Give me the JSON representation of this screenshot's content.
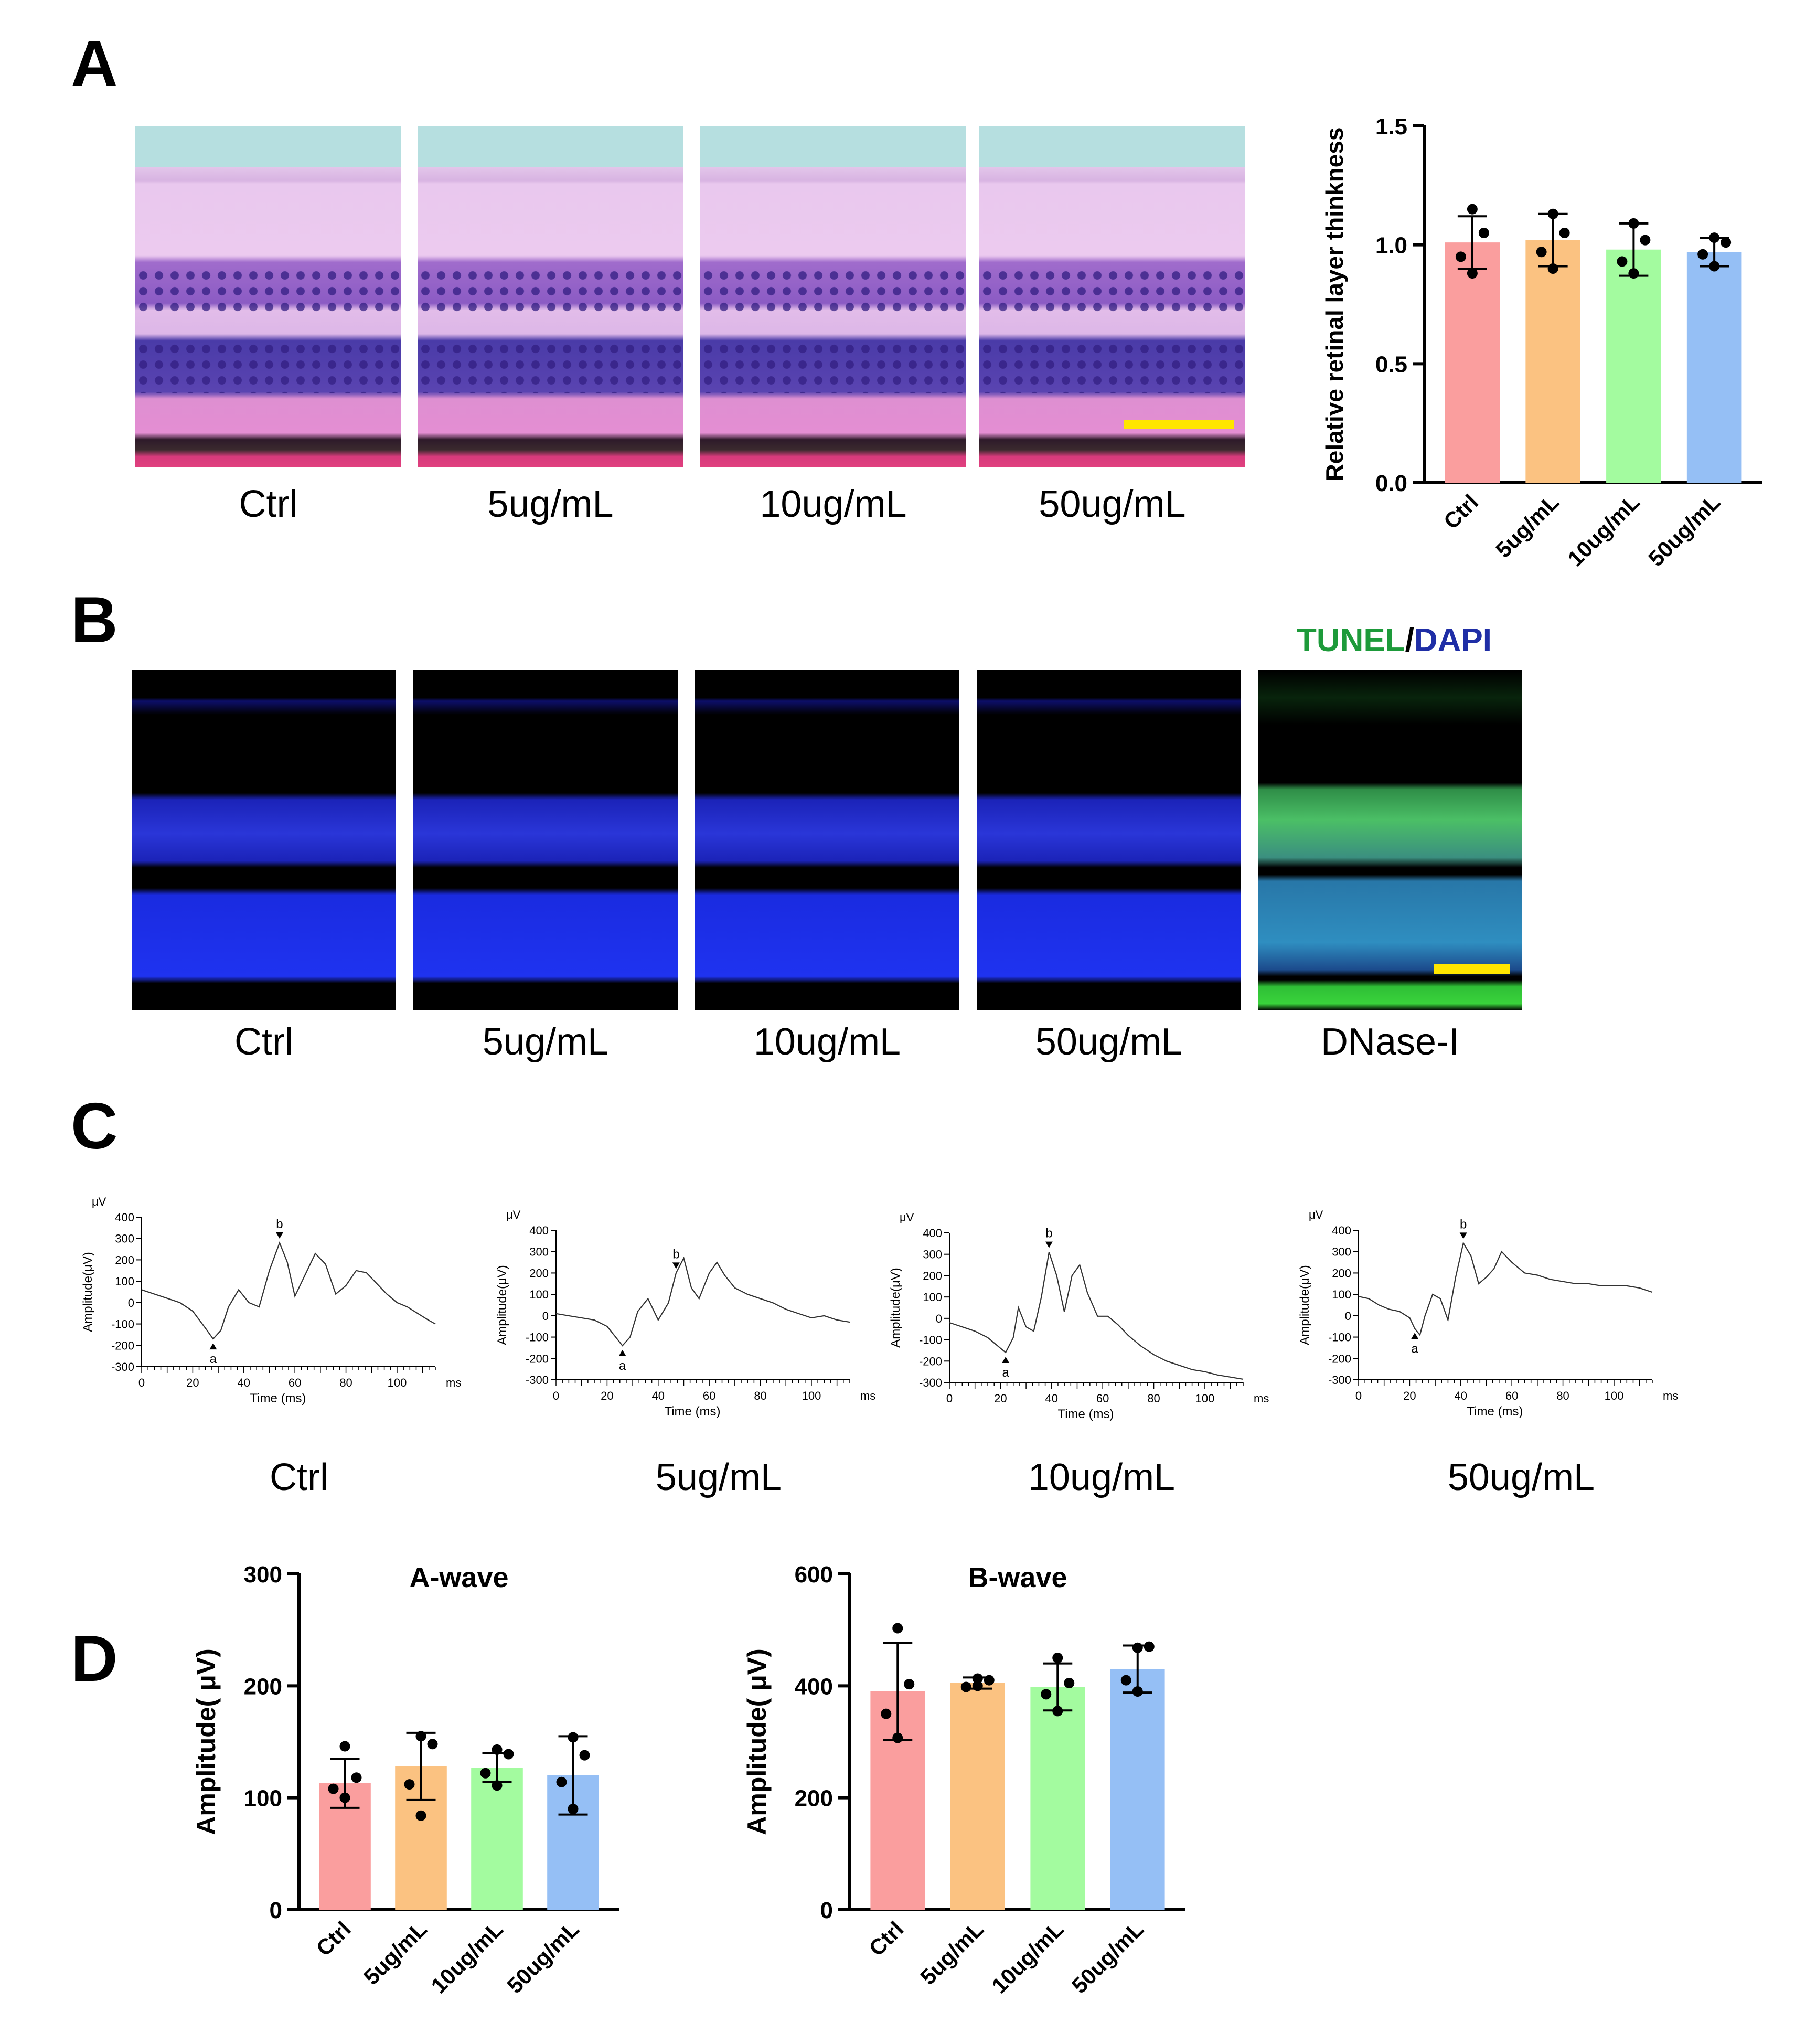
{
  "panels": {
    "a": "A",
    "b": "B",
    "c": "C",
    "d": "D"
  },
  "panel_a": {
    "image_labels": [
      "Ctrl",
      "5ug/mL",
      "10ug/mL",
      "50ug/mL"
    ]
  },
  "panel_b": {
    "image_labels": [
      "Ctrl",
      "5ug/mL",
      "10ug/mL",
      "50ug/mL",
      "DNase-I"
    ],
    "legend_green": "TUNEL",
    "legend_sep": "/",
    "legend_blue": "DAPI"
  },
  "panel_c": {
    "trace_labels": [
      "Ctrl",
      "5ug/mL",
      "10ug/mL",
      "50ug/mL"
    ],
    "unit_label": "μV",
    "ylabel": "Amplitude(μV)",
    "xlabel": "Time (ms)",
    "x_unit": "ms",
    "a_marker": "a",
    "b_marker": "b"
  },
  "colors": {
    "ctrl": "#fa9e9e",
    "c5": "#fbc281",
    "c10": "#a3fb9f",
    "c50": "#95bff5"
  },
  "chart_data": [
    {
      "id": "retinal-thickness",
      "type": "bar",
      "title": "",
      "xlabel": "",
      "ylabel": "Relative retinal layer thinkness",
      "categories": [
        "Ctrl",
        "5ug/mL",
        "10ug/mL",
        "50ug/mL"
      ],
      "values": [
        1.01,
        1.02,
        0.98,
        0.97
      ],
      "errors": [
        0.11,
        0.11,
        0.11,
        0.06
      ],
      "points": [
        [
          1.15,
          1.05,
          0.95,
          0.88
        ],
        [
          1.13,
          1.05,
          0.97,
          0.9
        ],
        [
          1.09,
          1.02,
          0.93,
          0.88
        ],
        [
          1.03,
          1.01,
          0.96,
          0.91
        ]
      ],
      "ylim": [
        0,
        1.5
      ],
      "yticks": [
        "0.0",
        "0.5",
        "1.0",
        "1.5"
      ]
    },
    {
      "id": "a-wave",
      "type": "bar",
      "title": "A-wave",
      "xlabel": "",
      "ylabel": "Amplitude( μV)",
      "categories": [
        "Ctrl",
        "5ug/mL",
        "10ug/mL",
        "50ug/mL"
      ],
      "values": [
        113,
        128,
        127,
        120
      ],
      "errors": [
        22,
        30,
        13,
        35
      ],
      "points": [
        [
          146,
          118,
          108,
          100
        ],
        [
          155,
          148,
          112,
          84
        ],
        [
          143,
          139,
          122,
          111
        ],
        [
          154,
          138,
          114,
          90
        ]
      ],
      "ylim": [
        0,
        300
      ],
      "yticks": [
        "0",
        "100",
        "200",
        "300"
      ]
    },
    {
      "id": "b-wave",
      "type": "bar",
      "title": "B-wave",
      "xlabel": "",
      "ylabel": "Amplitude( μV)",
      "categories": [
        "Ctrl",
        "5ug/mL",
        "10ug/mL",
        "50ug/mL"
      ],
      "values": [
        390,
        405,
        398,
        430
      ],
      "errors": [
        87,
        10,
        42,
        42
      ],
      "points": [
        [
          503,
          403,
          350,
          307
        ],
        [
          413,
          410,
          398,
          400
        ],
        [
          450,
          405,
          385,
          355
        ],
        [
          468,
          470,
          410,
          390
        ]
      ],
      "ylim": [
        0,
        600
      ],
      "yticks": [
        "0",
        "200",
        "400",
        "600"
      ]
    },
    {
      "id": "erg-traces",
      "type": "line",
      "title": "",
      "xlabel": "Time (ms)",
      "ylabel": "Amplitude(μV)",
      "xlim": [
        0,
        115
      ],
      "ylim": [
        -300,
        400
      ],
      "xticks": [
        "0",
        "20",
        "40",
        "60",
        "80",
        "100"
      ],
      "yticks": [
        "400",
        "300",
        "200",
        "100",
        "0",
        "-100",
        "-200",
        "-300"
      ],
      "series": [
        {
          "name": "Ctrl",
          "x": [
            0,
            5,
            10,
            15,
            20,
            25,
            28,
            31,
            34,
            38,
            42,
            46,
            50,
            54,
            57,
            60,
            64,
            68,
            72,
            76,
            80,
            84,
            88,
            92,
            96,
            100,
            104,
            108,
            112,
            115
          ],
          "y": [
            60,
            40,
            20,
            0,
            -40,
            -120,
            -170,
            -130,
            -20,
            60,
            0,
            -20,
            150,
            280,
            190,
            30,
            130,
            230,
            180,
            40,
            80,
            150,
            140,
            90,
            40,
            0,
            -20,
            -50,
            -80,
            -100
          ],
          "a_x": 28,
          "b_x": 54
        },
        {
          "name": "5ug/mL",
          "x": [
            0,
            5,
            10,
            15,
            20,
            24,
            26,
            29,
            32,
            36,
            40,
            44,
            47,
            50,
            53,
            56,
            60,
            63,
            66,
            70,
            75,
            80,
            85,
            90,
            95,
            100,
            105,
            110,
            115
          ],
          "y": [
            10,
            0,
            -10,
            -20,
            -50,
            -110,
            -140,
            -100,
            20,
            80,
            -20,
            60,
            200,
            270,
            130,
            80,
            200,
            250,
            190,
            130,
            100,
            80,
            60,
            30,
            10,
            -10,
            0,
            -20,
            -30
          ],
          "a_x": 26,
          "b_x": 47
        },
        {
          "name": "10ug/mL",
          "x": [
            0,
            5,
            10,
            15,
            20,
            22,
            25,
            27,
            30,
            33,
            36,
            39,
            42,
            45,
            48,
            51,
            54,
            58,
            62,
            66,
            70,
            75,
            80,
            85,
            90,
            95,
            100,
            105,
            110,
            115
          ],
          "y": [
            -20,
            -40,
            -60,
            -90,
            -140,
            -160,
            -90,
            50,
            -40,
            -60,
            100,
            310,
            200,
            30,
            200,
            250,
            120,
            10,
            10,
            -30,
            -80,
            -130,
            -170,
            -200,
            -220,
            -240,
            -250,
            -265,
            -275,
            -285
          ],
          "a_x": 22,
          "b_x": 39
        },
        {
          "name": "50ug/mL",
          "x": [
            0,
            4,
            8,
            12,
            16,
            20,
            22,
            24,
            26,
            29,
            32,
            35,
            38,
            41,
            44,
            47,
            50,
            53,
            56,
            60,
            65,
            70,
            75,
            80,
            85,
            90,
            95,
            100,
            105,
            110,
            115
          ],
          "y": [
            90,
            80,
            50,
            30,
            20,
            -10,
            -60,
            -90,
            0,
            100,
            80,
            -20,
            180,
            340,
            280,
            150,
            180,
            220,
            300,
            250,
            200,
            190,
            170,
            160,
            150,
            150,
            140,
            140,
            140,
            130,
            110
          ],
          "a_x": 22,
          "b_x": 41
        }
      ]
    }
  ]
}
